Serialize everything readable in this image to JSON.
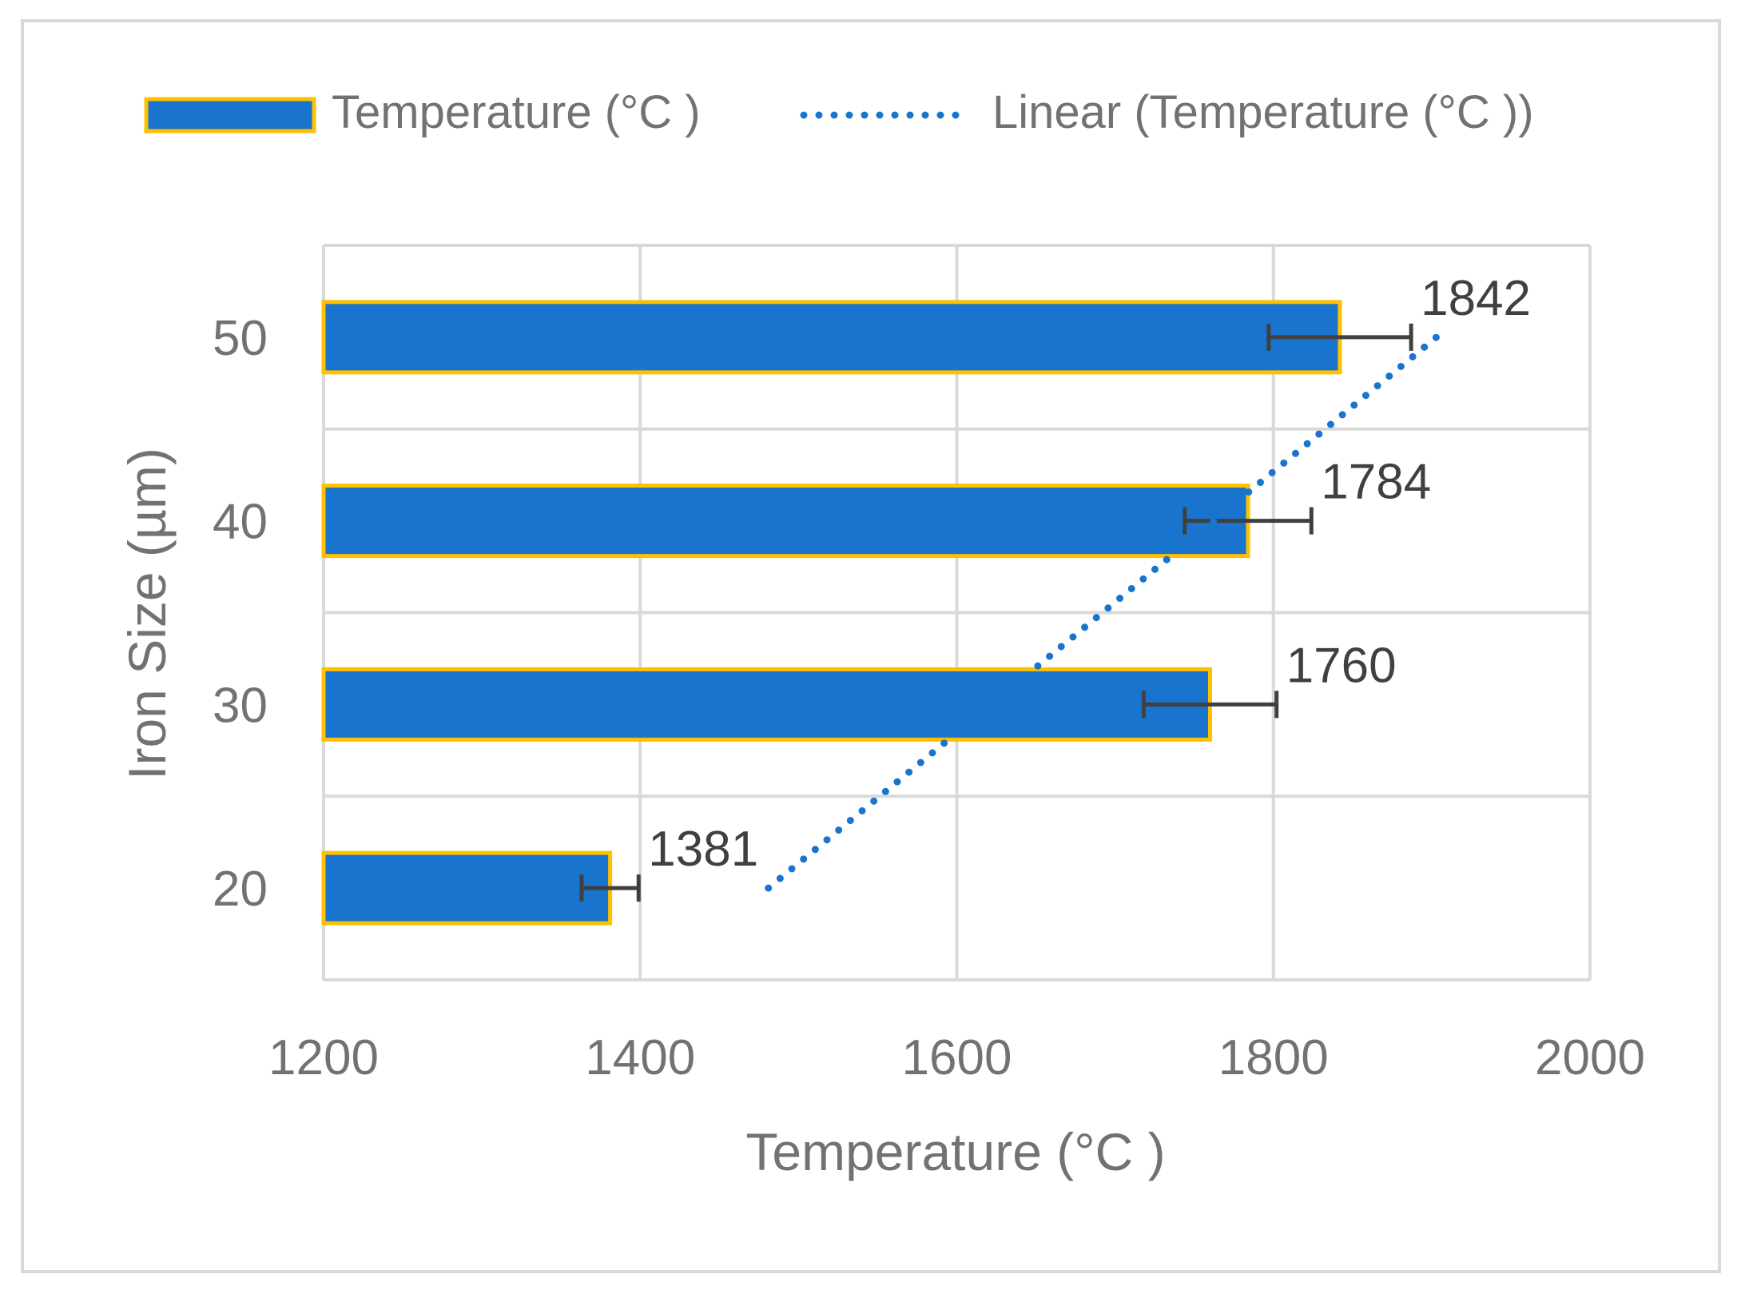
{
  "chart_data": {
    "type": "bar",
    "orientation": "horizontal",
    "categories": [
      "20",
      "30",
      "40",
      "50"
    ],
    "series": [
      {
        "name": "Temperature (°C )",
        "values": [
          1381,
          1760,
          1784,
          1842
        ],
        "error_minus": [
          18,
          42,
          40,
          45
        ],
        "error_plus": [
          18,
          42,
          40,
          45
        ],
        "data_labels": [
          "1381",
          "1760",
          "1784",
          "1842"
        ]
      }
    ],
    "trendline": {
      "name": "Linear (Temperature (°C ))",
      "type": "linear",
      "start": {
        "category": "20",
        "value": 1481
      },
      "end": {
        "category": "50",
        "value": 1903
      }
    },
    "title": "",
    "xlabel": "Temperature (°C )",
    "ylabel": "Iron Size (µm)",
    "xlim": [
      1200,
      2000
    ],
    "xticks": [
      "1200",
      "1400",
      "1600",
      "1800",
      "2000"
    ],
    "grid": true,
    "legend_position": "top",
    "colors": {
      "bar_fill": "#1874CD",
      "bar_border": "#FFC000",
      "trendline": "#1874CD",
      "grid": "#d9d9d9",
      "error_bar": "#404040"
    }
  }
}
